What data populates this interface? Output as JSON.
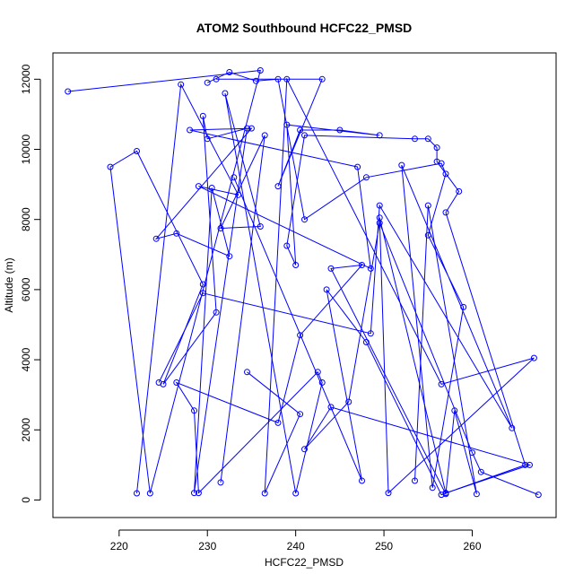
{
  "chart_data": {
    "type": "scatter",
    "title": "ATOM2 Southbound HCFC22_PMSD",
    "xlabel": "HCFC22_PMSD",
    "ylabel": "Altitude (m)",
    "xlim": [
      212.5,
      269.5
    ],
    "ylim": [
      -500,
      12750
    ],
    "xticks": [
      220,
      230,
      240,
      250,
      260
    ],
    "yticks": [
      0,
      2000,
      4000,
      6000,
      8000,
      10000,
      12000
    ],
    "line_color": "#0000ff",
    "point_color": "#0000ff",
    "series": [
      {
        "mode": "lines+markers",
        "x": [
          214.2,
          236.0,
          223.5,
          219.0,
          222.0,
          229.5,
          225.0,
          231.0,
          229.5,
          230.0,
          234.5,
          228.5,
          230.5,
          232.5,
          226.5,
          224.2,
          235.0,
          228.0,
          247.0,
          248.5,
          229.0,
          233.5,
          227.0,
          222.0
        ],
        "y": [
          11650,
          12250,
          190,
          9500,
          9950,
          6150,
          3300,
          5350,
          10950,
          10300,
          10600,
          200,
          8900,
          6950,
          7600,
          7450,
          10600,
          10550,
          9500,
          6600,
          8950,
          8700,
          11850,
          190
        ]
      },
      {
        "mode": "lines+markers",
        "x": [
          231.0,
          243.0,
          238.0,
          240.5,
          245.0,
          249.5,
          239.0,
          240.0,
          239.0,
          241.0,
          253.5,
          255.0,
          256.0,
          256.0,
          258.5,
          257.0,
          266.0,
          256.5,
          248.0,
          243.5,
          247.5,
          233.0
        ],
        "y": [
          12000,
          12000,
          8950,
          10550,
          10550,
          10400,
          10700,
          6700,
          7250,
          10400,
          10300,
          10300,
          10050,
          9650,
          8800,
          8200,
          1000,
          150,
          4500,
          6000,
          550,
          9200
        ]
      },
      {
        "mode": "lines+markers",
        "x": [
          230.0,
          232.5,
          235.5,
          238.0,
          241.0,
          248.0,
          256.5,
          257.0,
          255.0,
          259.0,
          255.5,
          252.0,
          264.5,
          249.5,
          248.5,
          229.5,
          224.5
        ],
        "y": [
          11900,
          12200,
          11950,
          12000,
          8000,
          9200,
          9600,
          9300,
          7550,
          5500,
          350,
          9550,
          2050,
          8400,
          4750,
          5900,
          3350
        ]
      },
      {
        "mode": "lines+markers",
        "x": [
          234.5,
          240.5,
          236.5,
          239.0,
          256.5,
          267.0,
          250.5,
          249.5,
          257.0,
          266.5,
          244.0,
          241.0,
          246.0,
          249.5,
          260.0,
          261.0,
          267.5
        ],
        "y": [
          3650,
          2450,
          190,
          12000,
          3300,
          4050,
          200,
          8050,
          200,
          1000,
          2650,
          1450,
          2800,
          7900,
          1350,
          800,
          150
        ]
      },
      {
        "mode": "lines+markers",
        "x": [
          231.5,
          236.5,
          231.5,
          236.0,
          232.0,
          240.0,
          243.0,
          242.5,
          229.0,
          228.5,
          226.5,
          238.0,
          240.5,
          247.5,
          244.0,
          257.0,
          258.0,
          260.5,
          255.0,
          253.5
        ],
        "y": [
          500,
          10400,
          7750,
          7800,
          11600,
          190,
          3350,
          3650,
          200,
          2550,
          3350,
          2200,
          4700,
          6700,
          6600,
          170,
          2550,
          170,
          8400,
          550
        ]
      }
    ]
  }
}
